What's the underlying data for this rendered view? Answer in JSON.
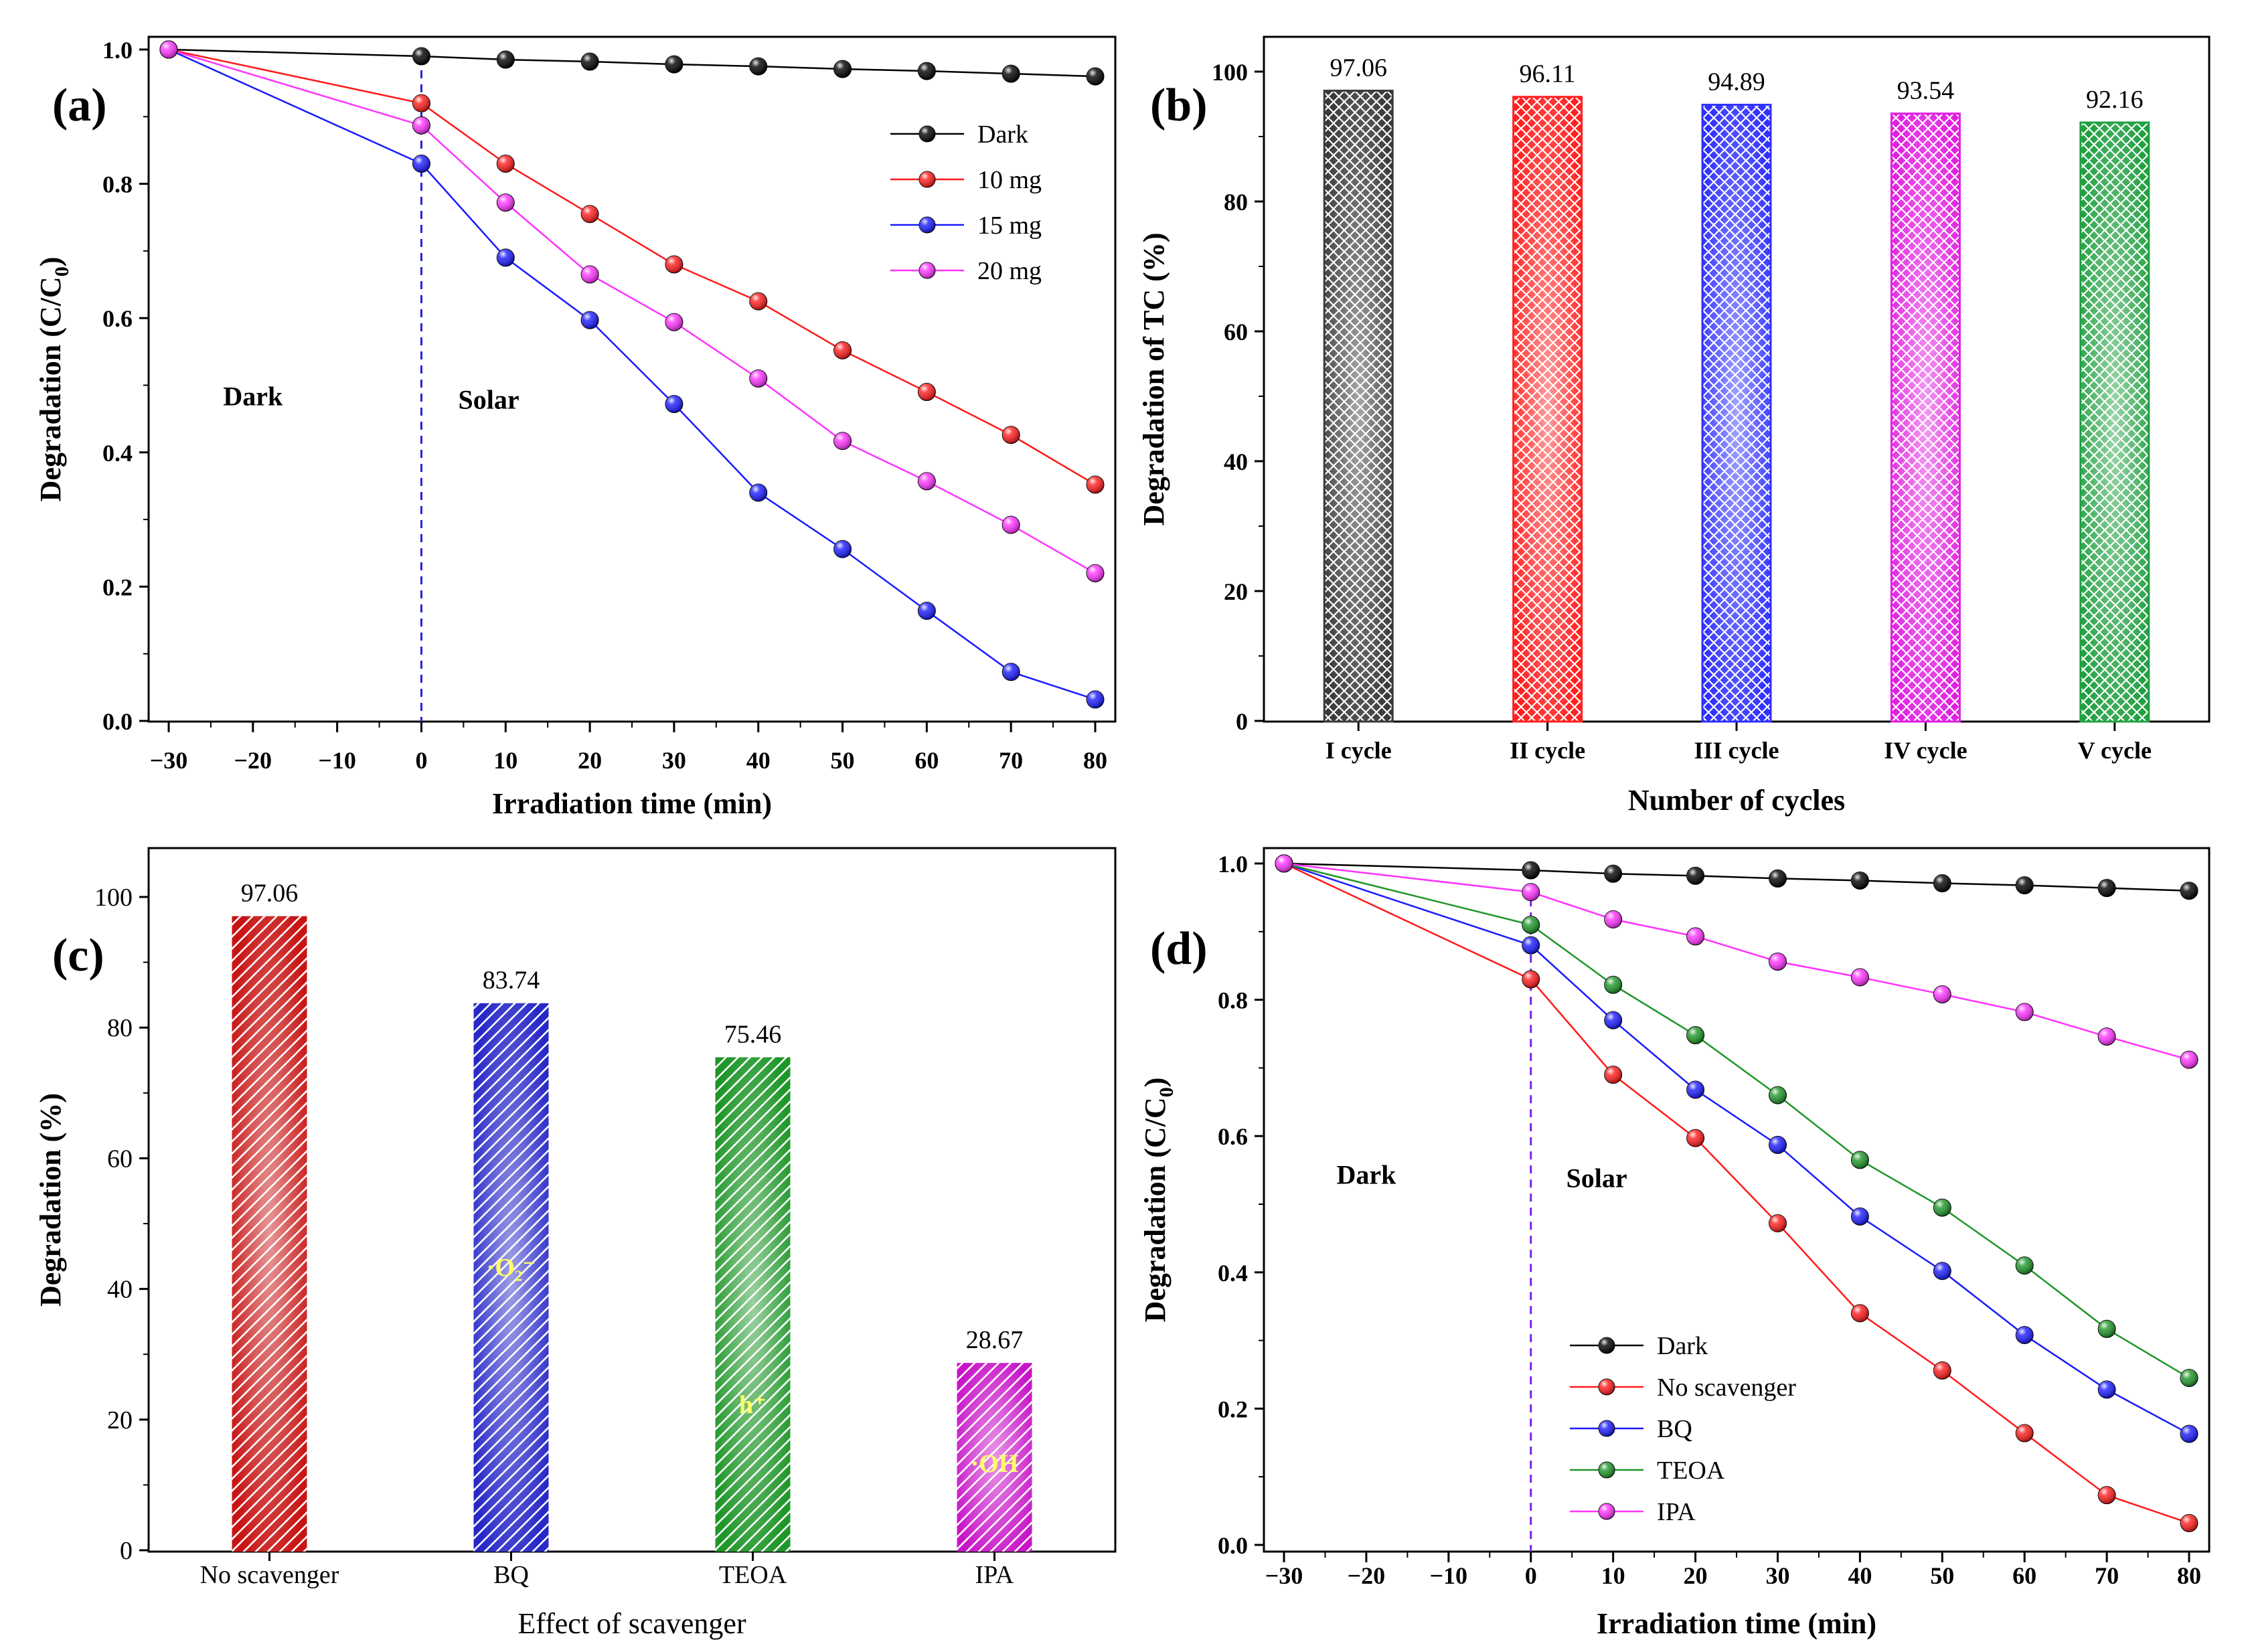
{
  "chart_data": [
    {
      "id": "a",
      "panel_label": "(a)",
      "type": "line",
      "xlabel": "Irradiation time (min)",
      "ylabel": "Degradation (C/C",
      "ylabel_sub": "0",
      "ylabel_close": ")",
      "xlim": [
        -30,
        80
      ],
      "ylim": [
        0,
        1.0
      ],
      "xticks": [
        -30,
        -20,
        -10,
        0,
        10,
        20,
        30,
        40,
        50,
        60,
        70,
        80
      ],
      "xtick_labels": [
        "−30",
        "−20",
        "−10",
        "0",
        "10",
        "20",
        "30",
        "40",
        "50",
        "60",
        "70",
        "80"
      ],
      "yticks": [
        0.0,
        0.2,
        0.4,
        0.6,
        0.8,
        1.0
      ],
      "ytick_labels": [
        "0.0",
        "0.2",
        "0.4",
        "0.6",
        "0.8",
        "1.0"
      ],
      "x": [
        -30,
        0,
        10,
        20,
        30,
        40,
        50,
        60,
        70,
        80
      ],
      "series": [
        {
          "name": "Dark",
          "color": "#000000",
          "values": [
            1.0,
            0.99,
            0.985,
            0.982,
            0.978,
            0.975,
            0.971,
            0.968,
            0.964,
            0.96
          ]
        },
        {
          "name": "10 mg",
          "color": "#ff1a1a",
          "values": [
            1.0,
            0.92,
            0.83,
            0.755,
            0.68,
            0.625,
            0.552,
            0.49,
            0.426,
            0.352
          ]
        },
        {
          "name": "15 mg",
          "color": "#1a1aff",
          "values": [
            1.0,
            0.83,
            0.69,
            0.597,
            0.472,
            0.34,
            0.256,
            0.164,
            0.073,
            0.032
          ]
        },
        {
          "name": "20 mg",
          "color": "#ff33ff",
          "values": [
            1.0,
            0.887,
            0.772,
            0.665,
            0.594,
            0.51,
            0.417,
            0.357,
            0.292,
            0.22
          ]
        }
      ],
      "legend_position": "top-right",
      "annotations": [
        {
          "text": "Dark",
          "x": -20,
          "y": 0.47
        },
        {
          "text": "Solar",
          "x": 8,
          "y": 0.465
        }
      ],
      "divider_x": 0,
      "divider_color": "#2222dd"
    },
    {
      "id": "b",
      "panel_label": "(b)",
      "type": "bar",
      "xlabel": "Number of cycles",
      "ylabel": "Degradation of TC (%)",
      "ylim": [
        0,
        105
      ],
      "yticks": [
        0,
        20,
        40,
        60,
        80,
        100
      ],
      "ytick_labels": [
        "0",
        "20",
        "40",
        "60",
        "80",
        "100"
      ],
      "categories": [
        "I cycle",
        "II cycle",
        "III cycle",
        "IV cycle",
        "V cycle"
      ],
      "values": [
        97.06,
        96.11,
        94.89,
        93.54,
        92.16
      ],
      "value_labels": [
        "97.06",
        "96.11",
        "94.89",
        "93.54",
        "92.16"
      ],
      "colors": [
        "#3a3a3a",
        "#ff2020",
        "#3030ff",
        "#e020e0",
        "#20a040"
      ]
    },
    {
      "id": "c",
      "panel_label": "(c)",
      "type": "bar",
      "xlabel": "Effect of scavenger",
      "ylabel": "Degradation (%)",
      "ylim": [
        0,
        108
      ],
      "yticks": [
        0,
        20,
        40,
        60,
        80,
        100
      ],
      "ytick_labels": [
        "0",
        "20",
        "40",
        "60",
        "80",
        "100"
      ],
      "categories": [
        "No scavenger",
        "BQ",
        "TEOA",
        "IPA"
      ],
      "values": [
        97.06,
        83.74,
        75.46,
        28.67
      ],
      "value_labels": [
        "97.06",
        "83.74",
        "75.46",
        "28.67"
      ],
      "colors": [
        "#c81414",
        "#2828c8",
        "#1e9628",
        "#c814c8"
      ],
      "inner_labels": [
        "",
        "·O₂⁻",
        "h⁺",
        "·OH"
      ]
    },
    {
      "id": "d",
      "panel_label": "(d)",
      "type": "line",
      "xlabel": "Irradiation time (min)",
      "ylabel": "Degradation (C/C",
      "ylabel_sub": "0",
      "ylabel_close": ")",
      "xlim": [
        -30,
        80
      ],
      "ylim": [
        0,
        1.0
      ],
      "xticks": [
        -30,
        -20,
        -10,
        0,
        10,
        20,
        30,
        40,
        50,
        60,
        70,
        80
      ],
      "xtick_labels": [
        "−30",
        "−20",
        "−10",
        "0",
        "10",
        "20",
        "30",
        "40",
        "50",
        "60",
        "70",
        "80"
      ],
      "yticks": [
        0.0,
        0.2,
        0.4,
        0.6,
        0.8,
        1.0
      ],
      "ytick_labels": [
        "0.0",
        "0.2",
        "0.4",
        "0.6",
        "0.8",
        "1.0"
      ],
      "x": [
        -30,
        0,
        10,
        20,
        30,
        40,
        50,
        60,
        70,
        80
      ],
      "series": [
        {
          "name": "Dark",
          "color": "#000000",
          "values": [
            1.0,
            0.99,
            0.985,
            0.982,
            0.978,
            0.975,
            0.971,
            0.968,
            0.964,
            0.96
          ]
        },
        {
          "name": "No scavenger",
          "color": "#ff1a1a",
          "values": [
            1.0,
            0.83,
            0.69,
            0.597,
            0.472,
            0.34,
            0.256,
            0.164,
            0.073,
            0.032
          ]
        },
        {
          "name": "BQ",
          "color": "#1a1aff",
          "values": [
            1.0,
            0.88,
            0.77,
            0.668,
            0.587,
            0.482,
            0.402,
            0.308,
            0.228,
            0.163
          ]
        },
        {
          "name": "TEOA",
          "color": "#1e9628",
          "values": [
            1.0,
            0.91,
            0.822,
            0.748,
            0.66,
            0.565,
            0.495,
            0.41,
            0.317,
            0.245
          ]
        },
        {
          "name": "IPA",
          "color": "#ff33ff",
          "values": [
            1.0,
            0.958,
            0.918,
            0.893,
            0.856,
            0.833,
            0.808,
            0.782,
            0.746,
            0.712
          ]
        }
      ],
      "legend_position": "bottom-left",
      "annotations": [
        {
          "text": "Dark",
          "x": -20,
          "y": 0.53
        },
        {
          "text": "Solar",
          "x": 8,
          "y": 0.525
        }
      ],
      "divider_x": 0,
      "divider_color": "#7a22ee"
    }
  ]
}
